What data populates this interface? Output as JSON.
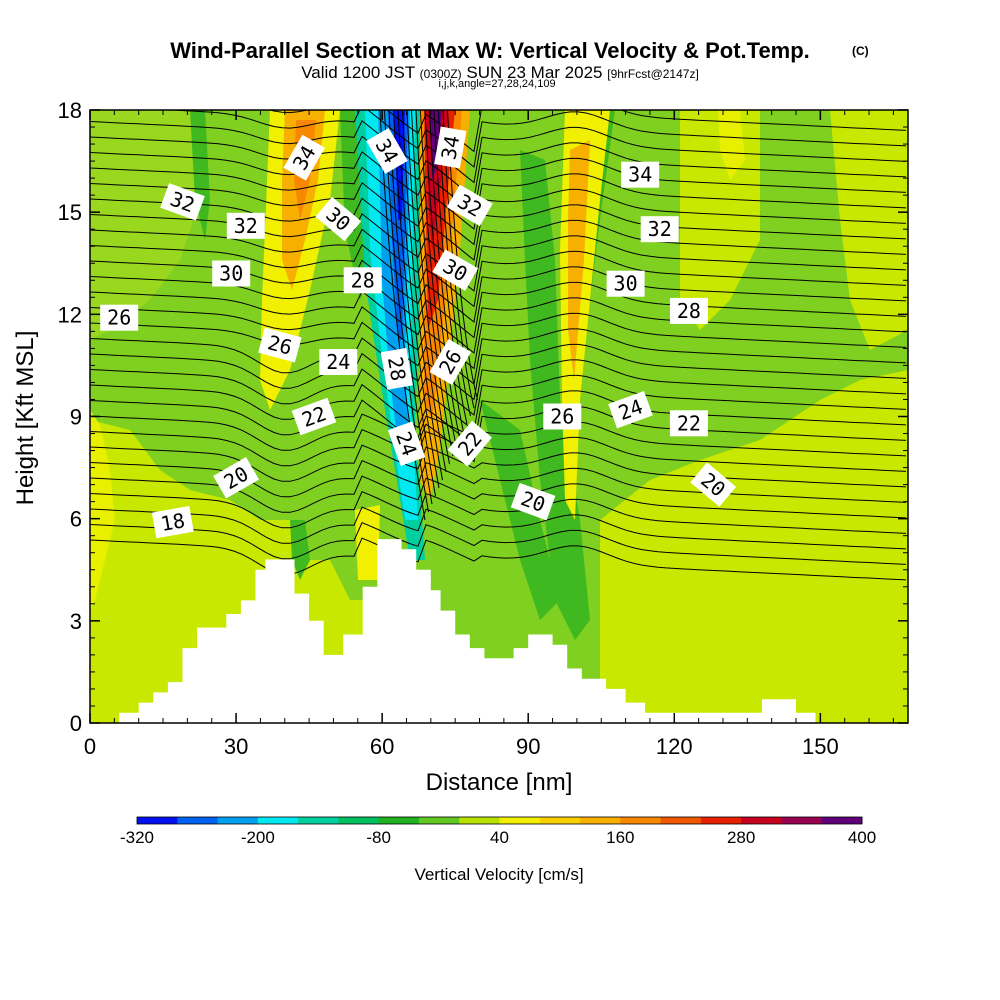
{
  "chart_data": {
    "type": "heatmap",
    "title": "Wind-Parallel Section at Max W: Vertical Velocity & Pot.Temp.",
    "title_mark": "(C)",
    "subtitle": {
      "valid": "Valid 1200 JST",
      "zulu": "(0300Z)",
      "date": "SUN 23 Mar 2025",
      "fcst": "[9hrFcst@2147z]"
    },
    "grid_info": "i,j,k,angle=27,28,24,109",
    "xlabel": "Distance [nm]",
    "ylabel": "Height [Kft MSL]",
    "xlim": [
      0,
      168
    ],
    "ylim": [
      0,
      18
    ],
    "x_ticks": [
      "0",
      "30",
      "60",
      "90",
      "120",
      "150"
    ],
    "y_ticks": [
      "0",
      "3",
      "6",
      "9",
      "12",
      "15",
      "18"
    ],
    "colorbar": {
      "label": "Vertical Velocity [cm/s]",
      "tick_labels": [
        "-320",
        "-200",
        "-80",
        "40",
        "160",
        "280",
        "400"
      ],
      "colors": [
        "#0010f0",
        "#0060f0",
        "#00a0f0",
        "#00e8f0",
        "#00d0a0",
        "#00c060",
        "#20b020",
        "#60c820",
        "#b8e000",
        "#f0f000",
        "#f8d000",
        "#f8b000",
        "#f88800",
        "#f05800",
        "#e82000",
        "#c80020",
        "#980050",
        "#600078"
      ]
    },
    "terrain_kft": [
      [
        0,
        0
      ],
      [
        6,
        0
      ],
      [
        6,
        0.3
      ],
      [
        10,
        0.3
      ],
      [
        10,
        0.6
      ],
      [
        13,
        0.6
      ],
      [
        13,
        0.9
      ],
      [
        16,
        0.9
      ],
      [
        16,
        1.2
      ],
      [
        19,
        1.2
      ],
      [
        19,
        2.2
      ],
      [
        22,
        2.2
      ],
      [
        22,
        2.8
      ],
      [
        28,
        2.8
      ],
      [
        28,
        3.2
      ],
      [
        31,
        3.2
      ],
      [
        31,
        3.6
      ],
      [
        34,
        3.6
      ],
      [
        34,
        4.5
      ],
      [
        36,
        4.5
      ],
      [
        36,
        4.8
      ],
      [
        42,
        4.8
      ],
      [
        42,
        3.8
      ],
      [
        45,
        3.8
      ],
      [
        45,
        3
      ],
      [
        48,
        3
      ],
      [
        48,
        2
      ],
      [
        52,
        2
      ],
      [
        52,
        2.6
      ],
      [
        56,
        2.6
      ],
      [
        56,
        4
      ],
      [
        59,
        4
      ],
      [
        59,
        5.4
      ],
      [
        64,
        5.4
      ],
      [
        64,
        5.1
      ],
      [
        67,
        5.1
      ],
      [
        67,
        4.5
      ],
      [
        70,
        4.5
      ],
      [
        70,
        3.9
      ],
      [
        72,
        3.9
      ],
      [
        72,
        3.3
      ],
      [
        75,
        3.3
      ],
      [
        75,
        2.6
      ],
      [
        78,
        2.6
      ],
      [
        78,
        2.2
      ],
      [
        81,
        2.2
      ],
      [
        81,
        1.9
      ],
      [
        87,
        1.9
      ],
      [
        87,
        2.2
      ],
      [
        90,
        2.2
      ],
      [
        90,
        2.6
      ],
      [
        95,
        2.6
      ],
      [
        95,
        2.3
      ],
      [
        98,
        2.3
      ],
      [
        98,
        1.6
      ],
      [
        101,
        1.6
      ],
      [
        101,
        1.3
      ],
      [
        106,
        1.3
      ],
      [
        106,
        1
      ],
      [
        110,
        1
      ],
      [
        110,
        0.6
      ],
      [
        114,
        0.6
      ],
      [
        114,
        0.3
      ],
      [
        138,
        0.3
      ],
      [
        138,
        0.7
      ],
      [
        145,
        0.7
      ],
      [
        145,
        0.3
      ],
      [
        149,
        0.3
      ],
      [
        149,
        0
      ],
      [
        168,
        0
      ]
    ],
    "velocity_bands": [
      {
        "x": [
          64,
          70
        ],
        "value": -300,
        "note": "core downdraft"
      },
      {
        "x": [
          70,
          74
        ],
        "value": 330,
        "note": "core updraft"
      },
      {
        "x": [
          40,
          46
        ],
        "value": 160,
        "note": "orange updraft band"
      },
      {
        "x": [
          100,
          106
        ],
        "value": 80,
        "note": "yellow updraft band"
      }
    ],
    "theta_labels": [
      {
        "text": "34",
        "x": 44,
        "y": 16.6
      },
      {
        "text": "34",
        "x": 61,
        "y": 16.8
      },
      {
        "text": "34",
        "x": 74,
        "y": 16.9
      },
      {
        "text": "34",
        "x": 113,
        "y": 16.1
      },
      {
        "text": "32",
        "x": 19,
        "y": 15.3
      },
      {
        "text": "32",
        "x": 32,
        "y": 14.6
      },
      {
        "text": "32",
        "x": 78,
        "y": 15.2
      },
      {
        "text": "32",
        "x": 117,
        "y": 14.5
      },
      {
        "text": "30",
        "x": 51,
        "y": 14.8
      },
      {
        "text": "30",
        "x": 29,
        "y": 13.2
      },
      {
        "text": "30",
        "x": 75,
        "y": 13.3
      },
      {
        "text": "30",
        "x": 110,
        "y": 12.9
      },
      {
        "text": "28",
        "x": 56,
        "y": 13
      },
      {
        "text": "28",
        "x": 123,
        "y": 12.1
      },
      {
        "text": "26",
        "x": 6,
        "y": 11.9
      },
      {
        "text": "26",
        "x": 39,
        "y": 11.1
      },
      {
        "text": "26",
        "x": 74,
        "y": 10.6
      },
      {
        "text": "28",
        "x": 63,
        "y": 10.4
      },
      {
        "text": "24",
        "x": 51,
        "y": 10.6
      },
      {
        "text": "24",
        "x": 111,
        "y": 9.2
      },
      {
        "text": "22",
        "x": 46,
        "y": 9
      },
      {
        "text": "22",
        "x": 123,
        "y": 8.8
      },
      {
        "text": "26",
        "x": 97,
        "y": 9
      },
      {
        "text": "24",
        "x": 65,
        "y": 8.2
      },
      {
        "text": "22",
        "x": 78,
        "y": 8.2
      },
      {
        "text": "20",
        "x": 30,
        "y": 7.2
      },
      {
        "text": "20",
        "x": 91,
        "y": 6.5
      },
      {
        "text": "20",
        "x": 128,
        "y": 7
      },
      {
        "text": "18",
        "x": 17,
        "y": 5.9
      }
    ]
  }
}
